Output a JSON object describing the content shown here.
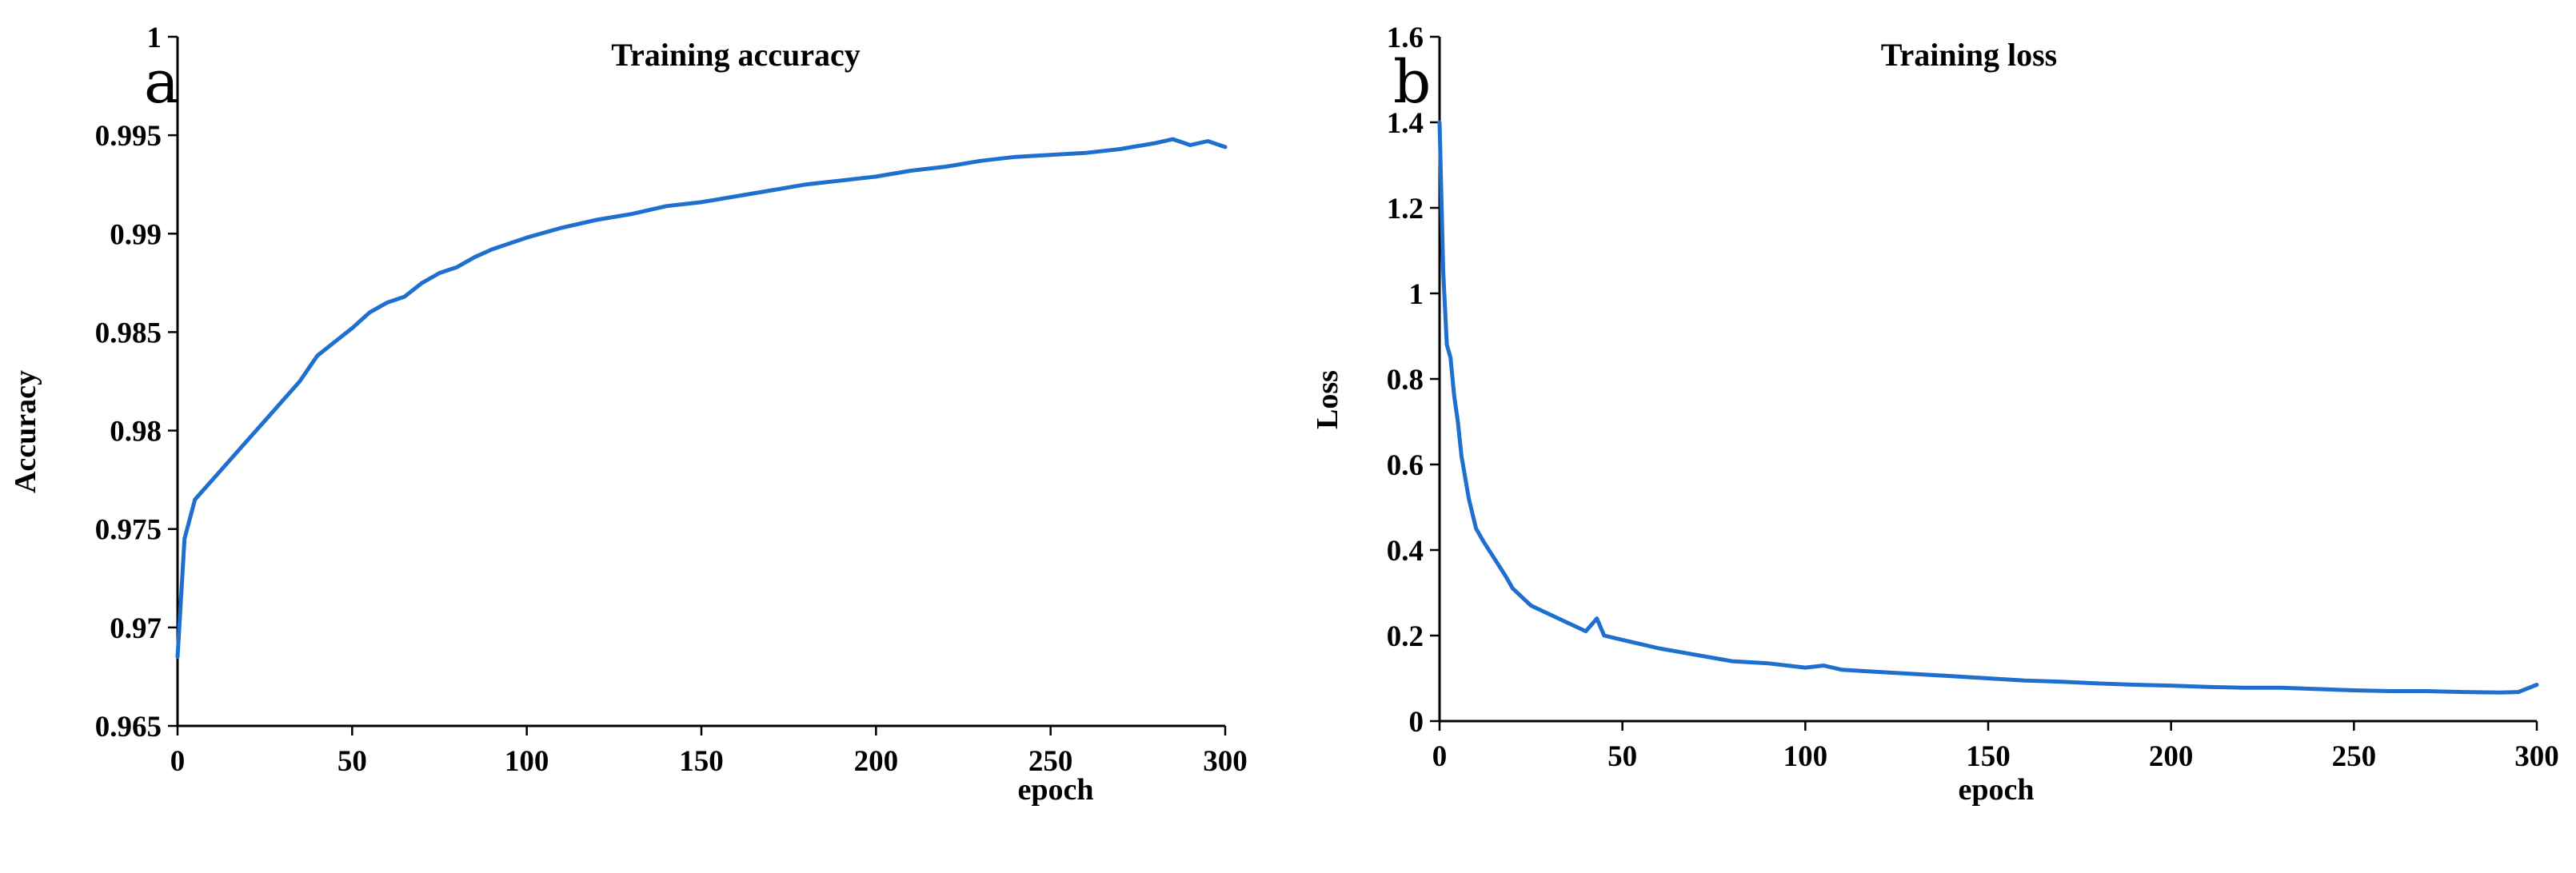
{
  "colors": {
    "series": "#1f6fcf",
    "axis": "#000000"
  },
  "chart_data": [
    {
      "type": "line",
      "panel_label": "a",
      "title": "Training accuracy",
      "xlabel": "epoch",
      "ylabel": "Accuracy",
      "xlim": [
        0,
        300
      ],
      "ylim": [
        0.965,
        1
      ],
      "xticks": [
        0,
        50,
        100,
        150,
        200,
        250,
        300
      ],
      "xtick_labels": [
        "0",
        "50",
        "100",
        "150",
        "200",
        "250",
        "300"
      ],
      "yticks": [
        0.965,
        0.97,
        0.975,
        0.98,
        0.985,
        0.99,
        0.995,
        1
      ],
      "ytick_labels": [
        "0.965",
        "0.97",
        "0.975",
        "0.98",
        "0.985",
        "0.99",
        "0.995",
        "1"
      ],
      "grid": false,
      "series": [
        {
          "x": [
            0,
            2,
            5,
            10,
            15,
            20,
            25,
            30,
            35,
            40,
            45,
            50,
            55,
            60,
            65,
            70,
            75,
            80,
            85,
            90,
            95,
            100,
            110,
            120,
            130,
            140,
            150,
            160,
            170,
            180,
            190,
            200,
            210,
            220,
            230,
            240,
            250,
            260,
            270,
            280,
            285,
            290,
            295,
            300
          ],
          "values": [
            0.9685,
            0.9745,
            0.9765,
            0.9775,
            0.9785,
            0.9795,
            0.9805,
            0.9815,
            0.9825,
            0.9838,
            0.9845,
            0.9852,
            0.986,
            0.9865,
            0.9868,
            0.9875,
            0.988,
            0.9883,
            0.9888,
            0.9892,
            0.9895,
            0.9898,
            0.9903,
            0.9907,
            0.991,
            0.9914,
            0.9916,
            0.9919,
            0.9922,
            0.9925,
            0.9927,
            0.9929,
            0.9932,
            0.9934,
            0.9937,
            0.9939,
            0.994,
            0.9941,
            0.9943,
            0.9946,
            0.9948,
            0.9945,
            0.9947,
            0.9944
          ]
        }
      ]
    },
    {
      "type": "line",
      "panel_label": "b",
      "title": "Training loss",
      "xlabel": "epoch",
      "ylabel": "Loss",
      "xlim": [
        0,
        300
      ],
      "ylim": [
        0,
        1.6
      ],
      "xticks": [
        0,
        50,
        100,
        150,
        200,
        250,
        300
      ],
      "xtick_labels": [
        "0",
        "50",
        "100",
        "150",
        "200",
        "250",
        "300"
      ],
      "yticks": [
        0,
        0.2,
        0.4,
        0.6,
        0.8,
        1,
        1.2,
        1.4,
        1.6
      ],
      "ytick_labels": [
        "0",
        "0.2",
        "0.4",
        "0.6",
        "0.8",
        "1",
        "1.2",
        "1.4",
        "1.6"
      ],
      "grid": false,
      "series": [
        {
          "x": [
            0,
            1,
            2,
            3,
            4,
            5,
            6,
            8,
            10,
            12,
            15,
            18,
            20,
            25,
            30,
            35,
            40,
            43,
            45,
            50,
            55,
            60,
            70,
            80,
            90,
            100,
            105,
            110,
            120,
            130,
            140,
            150,
            160,
            170,
            180,
            190,
            200,
            210,
            220,
            230,
            240,
            250,
            260,
            270,
            280,
            290,
            295,
            300
          ],
          "values": [
            1.4,
            1.05,
            0.88,
            0.85,
            0.76,
            0.7,
            0.62,
            0.52,
            0.45,
            0.42,
            0.38,
            0.34,
            0.31,
            0.27,
            0.25,
            0.23,
            0.21,
            0.24,
            0.2,
            0.19,
            0.18,
            0.17,
            0.155,
            0.14,
            0.135,
            0.125,
            0.13,
            0.12,
            0.115,
            0.11,
            0.105,
            0.1,
            0.095,
            0.092,
            0.088,
            0.085,
            0.083,
            0.08,
            0.078,
            0.078,
            0.075,
            0.072,
            0.07,
            0.07,
            0.068,
            0.067,
            0.068,
            0.085
          ]
        }
      ]
    }
  ]
}
